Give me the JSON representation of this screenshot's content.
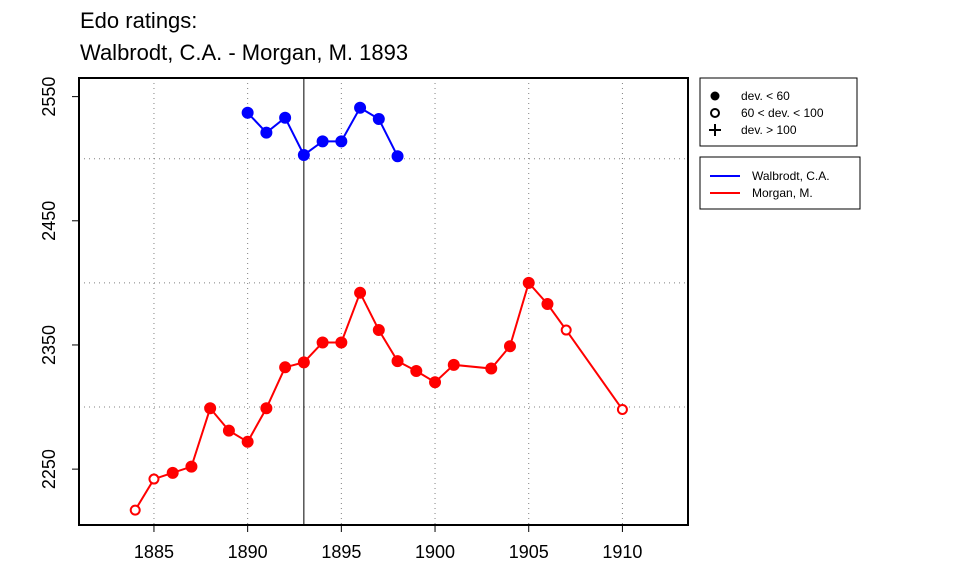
{
  "title_line1": "Edo ratings:",
  "title_line2": "Walbrodt, C.A. - Morgan, M. 1893",
  "chart_data": {
    "type": "line",
    "xlim": [
      1881,
      1913.5
    ],
    "ylim": [
      2205,
      2565
    ],
    "x_ticks": [
      1885,
      1890,
      1895,
      1900,
      1905,
      1910
    ],
    "y_ticks": [
      2250,
      2350,
      2450,
      2550
    ],
    "grid": true,
    "grid_x": [
      1885,
      1890,
      1895,
      1900,
      1905,
      1910
    ],
    "grid_y": [
      2300,
      2400,
      2500
    ],
    "vertical_marker": 1893,
    "legend_markers": [
      {
        "label": "dev. < 60",
        "shape": "filled-circle"
      },
      {
        "label": "60 < dev. < 100",
        "shape": "open-circle"
      },
      {
        "label": "dev. > 100",
        "shape": "plus"
      }
    ],
    "legend_placement": "right",
    "series": [
      {
        "name": "Walbrodt, C.A.",
        "color": "#0000ff",
        "x": [
          1890,
          1891,
          1892,
          1893,
          1894,
          1895,
          1896,
          1897,
          1898
        ],
        "y": [
          2537,
          2521,
          2533,
          2503,
          2514,
          2514,
          2541,
          2532,
          2502
        ],
        "markers": [
          "filled",
          "filled",
          "filled",
          "filled",
          "filled",
          "filled",
          "filled",
          "filled",
          "filled"
        ]
      },
      {
        "name": "Morgan, M.",
        "color": "#ff0000",
        "x": [
          1884,
          1885,
          1886,
          1887,
          1888,
          1889,
          1890,
          1891,
          1892,
          1893,
          1894,
          1895,
          1896,
          1897,
          1898,
          1899,
          1900,
          1901,
          1903,
          1904,
          1905,
          1906,
          1907,
          1910
        ],
        "y": [
          2217,
          2242,
          2247,
          2252,
          2299,
          2281,
          2272,
          2299,
          2332,
          2336,
          2352,
          2352,
          2392,
          2362,
          2337,
          2329,
          2320,
          2334,
          2331,
          2349,
          2400,
          2383,
          2362,
          2298
        ],
        "markers": [
          "open",
          "open",
          "filled",
          "filled",
          "filled",
          "filled",
          "filled",
          "filled",
          "filled",
          "filled",
          "filled",
          "filled",
          "filled",
          "filled",
          "filled",
          "filled",
          "filled",
          "filled",
          "filled",
          "filled",
          "filled",
          "filled",
          "open",
          "open"
        ]
      }
    ]
  }
}
